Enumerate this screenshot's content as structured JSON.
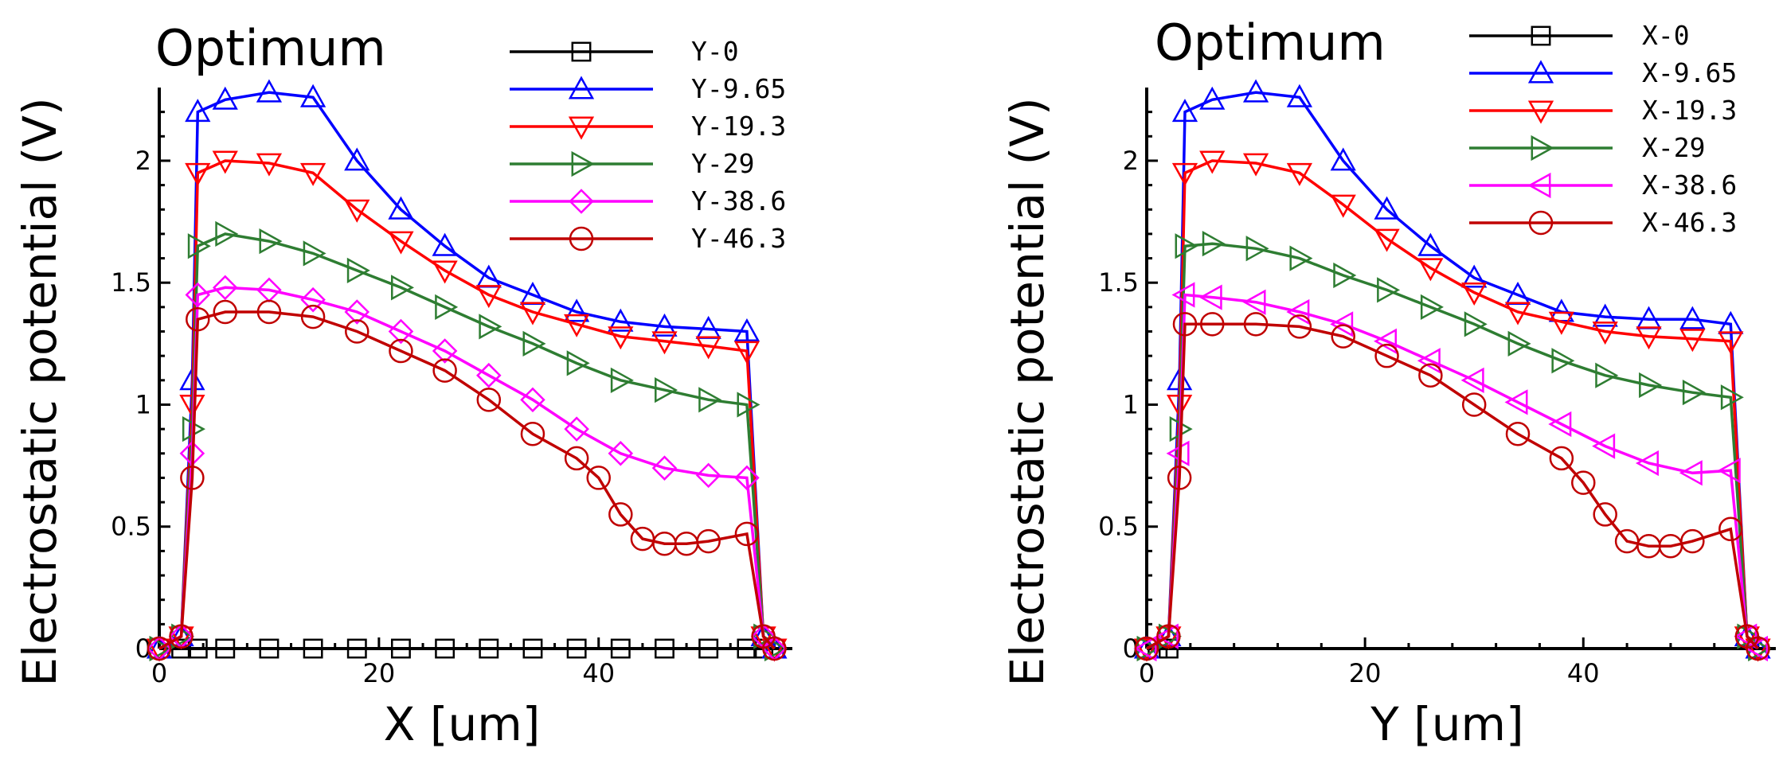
{
  "chart_data": [
    {
      "type": "line",
      "title": "Optimum",
      "xlabel": "X [um]",
      "ylabel": "Electrostatic potential (V)",
      "xlim": [
        0,
        58
      ],
      "ylim": [
        0,
        2.3
      ],
      "xticks": [
        0,
        20,
        40
      ],
      "yticks": [
        0,
        0.5,
        1,
        1.5,
        2
      ],
      "ytick_labels": [
        "0",
        "0.5",
        "1",
        "1.5",
        "2"
      ],
      "grid": false,
      "legend_position": "top-right",
      "series": [
        {
          "name": "Y-0",
          "color": "#000000",
          "marker": "square",
          "x": [
            0,
            2,
            3.5,
            6,
            10,
            14,
            18,
            22,
            26,
            30,
            34,
            38,
            42,
            46,
            50,
            53.5,
            55,
            56
          ],
          "y": [
            0,
            0,
            0,
            0,
            0,
            0,
            0,
            0,
            0,
            0,
            0,
            0,
            0,
            0,
            0,
            0,
            0,
            0
          ]
        },
        {
          "name": "Y-9.65",
          "color": "#0000ff",
          "marker": "triangle-up",
          "x": [
            0,
            2,
            3,
            3.5,
            6,
            10,
            14,
            18,
            22,
            26,
            30,
            34,
            38,
            42,
            46,
            50,
            53.5,
            55,
            56
          ],
          "y": [
            0,
            0.05,
            1.1,
            2.2,
            2.25,
            2.28,
            2.26,
            2.0,
            1.8,
            1.65,
            1.52,
            1.45,
            1.38,
            1.34,
            1.32,
            1.31,
            1.3,
            0.05,
            0
          ]
        },
        {
          "name": "Y-19.3",
          "color": "#ff0000",
          "marker": "triangle-down",
          "x": [
            0,
            2,
            3,
            3.5,
            6,
            10,
            14,
            18,
            22,
            26,
            30,
            34,
            38,
            42,
            46,
            50,
            53.5,
            55,
            56
          ],
          "y": [
            0,
            0.05,
            1.0,
            1.95,
            2.0,
            1.99,
            1.95,
            1.8,
            1.67,
            1.55,
            1.45,
            1.38,
            1.33,
            1.28,
            1.26,
            1.24,
            1.22,
            0.05,
            0
          ]
        },
        {
          "name": "Y-29",
          "color": "#2e7d32",
          "marker": "triangle-right",
          "x": [
            0,
            2,
            3,
            3.5,
            6,
            10,
            14,
            18,
            22,
            26,
            30,
            34,
            38,
            42,
            46,
            50,
            53.5,
            55,
            56
          ],
          "y": [
            0,
            0.05,
            0.9,
            1.65,
            1.7,
            1.67,
            1.62,
            1.55,
            1.48,
            1.4,
            1.32,
            1.25,
            1.17,
            1.1,
            1.06,
            1.02,
            1.0,
            0.05,
            0
          ]
        },
        {
          "name": "Y-38.6",
          "color": "#ff00ff",
          "marker": "diamond",
          "x": [
            0,
            2,
            3,
            3.5,
            6,
            10,
            14,
            18,
            22,
            26,
            30,
            34,
            38,
            42,
            46,
            50,
            53.5,
            55,
            56
          ],
          "y": [
            0,
            0.05,
            0.8,
            1.45,
            1.48,
            1.47,
            1.43,
            1.38,
            1.3,
            1.22,
            1.12,
            1.02,
            0.9,
            0.8,
            0.74,
            0.71,
            0.7,
            0.05,
            0
          ]
        },
        {
          "name": "Y-46.3",
          "color": "#c00000",
          "marker": "circle",
          "x": [
            0,
            2,
            3,
            3.5,
            6,
            10,
            14,
            18,
            22,
            26,
            30,
            34,
            38,
            40,
            42,
            44,
            46,
            48,
            50,
            53.5,
            55,
            56
          ],
          "y": [
            0,
            0.05,
            0.7,
            1.35,
            1.38,
            1.38,
            1.36,
            1.3,
            1.22,
            1.14,
            1.02,
            0.88,
            0.78,
            0.7,
            0.55,
            0.45,
            0.43,
            0.43,
            0.44,
            0.47,
            0.05,
            0
          ]
        }
      ]
    },
    {
      "type": "line",
      "title": "Optimum",
      "xlabel": "Y [um]",
      "ylabel": "Electrostatic potential (V)",
      "xlim": [
        0,
        58
      ],
      "ylim": [
        0,
        2.3
      ],
      "xticks": [
        0,
        20,
        40
      ],
      "yticks": [
        0,
        0.5,
        1,
        1.5,
        2
      ],
      "ytick_labels": [
        "0",
        "0.5",
        "1",
        "1.5",
        "2"
      ],
      "grid": false,
      "legend_position": "top-right",
      "series": [
        {
          "name": "X-0",
          "color": "#000000",
          "marker": "square",
          "x": [
            0,
            1,
            2
          ],
          "y": [
            0,
            0,
            0
          ]
        },
        {
          "name": "X-9.65",
          "color": "#0000ff",
          "marker": "triangle-up",
          "x": [
            0,
            2,
            3,
            3.5,
            6,
            10,
            14,
            18,
            22,
            26,
            30,
            34,
            38,
            42,
            46,
            50,
            53.5,
            55,
            56
          ],
          "y": [
            0,
            0.05,
            1.1,
            2.2,
            2.25,
            2.28,
            2.26,
            2.0,
            1.8,
            1.65,
            1.52,
            1.45,
            1.38,
            1.36,
            1.35,
            1.35,
            1.33,
            0.05,
            0
          ]
        },
        {
          "name": "X-19.3",
          "color": "#ff0000",
          "marker": "triangle-down",
          "x": [
            0,
            2,
            3,
            3.5,
            6,
            10,
            14,
            18,
            22,
            26,
            30,
            34,
            38,
            42,
            46,
            50,
            53.5,
            55,
            56
          ],
          "y": [
            0,
            0.05,
            1.0,
            1.95,
            2.0,
            1.99,
            1.95,
            1.82,
            1.68,
            1.56,
            1.46,
            1.38,
            1.34,
            1.3,
            1.28,
            1.27,
            1.26,
            0.05,
            0
          ]
        },
        {
          "name": "X-29",
          "color": "#2e7d32",
          "marker": "triangle-right",
          "x": [
            0,
            2,
            3,
            3.5,
            6,
            10,
            14,
            18,
            22,
            26,
            30,
            34,
            38,
            42,
            46,
            50,
            53.5,
            55,
            56
          ],
          "y": [
            0,
            0.05,
            0.9,
            1.65,
            1.66,
            1.64,
            1.6,
            1.53,
            1.47,
            1.4,
            1.33,
            1.25,
            1.18,
            1.12,
            1.08,
            1.05,
            1.03,
            0.05,
            0
          ]
        },
        {
          "name": "X-38.6",
          "color": "#ff00ff",
          "marker": "triangle-left",
          "x": [
            0,
            2,
            3,
            3.5,
            6,
            10,
            14,
            18,
            22,
            26,
            30,
            34,
            38,
            42,
            46,
            50,
            53.5,
            55,
            56
          ],
          "y": [
            0,
            0.05,
            0.8,
            1.45,
            1.44,
            1.42,
            1.38,
            1.33,
            1.26,
            1.18,
            1.1,
            1.01,
            0.92,
            0.83,
            0.76,
            0.72,
            0.73,
            0.05,
            0
          ]
        },
        {
          "name": "X-46.3",
          "color": "#c00000",
          "marker": "circle",
          "x": [
            0,
            2,
            3,
            3.5,
            6,
            10,
            14,
            18,
            22,
            26,
            30,
            34,
            38,
            40,
            42,
            44,
            46,
            48,
            50,
            53.5,
            55,
            56
          ],
          "y": [
            0,
            0.05,
            0.7,
            1.33,
            1.33,
            1.33,
            1.32,
            1.28,
            1.2,
            1.12,
            1.0,
            0.88,
            0.78,
            0.68,
            0.55,
            0.44,
            0.42,
            0.42,
            0.44,
            0.49,
            0.05,
            0
          ]
        }
      ]
    }
  ]
}
